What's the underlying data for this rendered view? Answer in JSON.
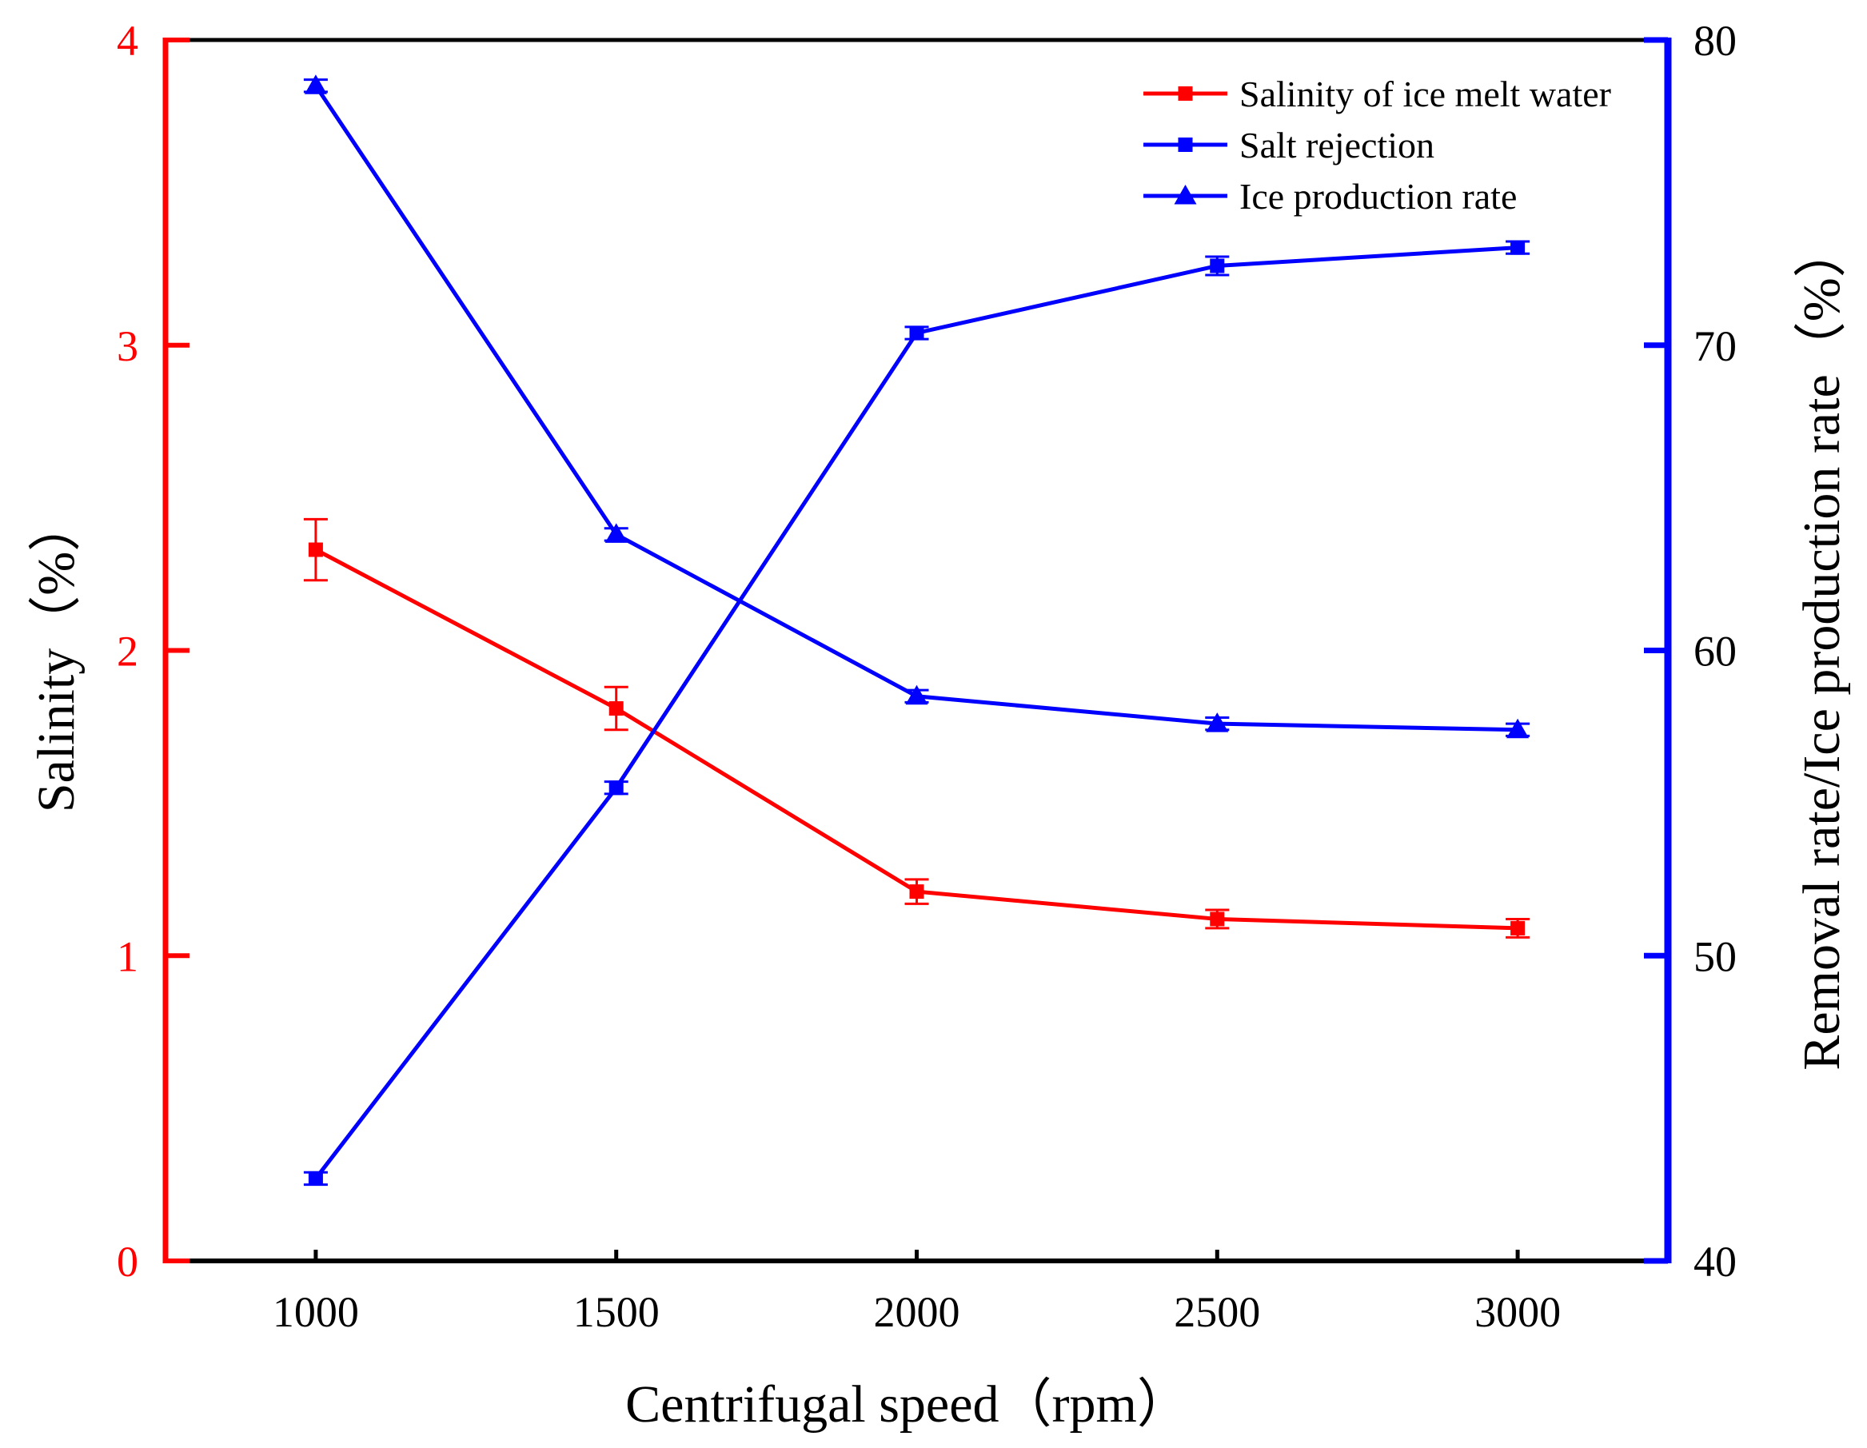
{
  "chart_data": {
    "type": "line",
    "x": [
      1000,
      1500,
      2000,
      2500,
      3000
    ],
    "xlabel": "Centrifugal speed（rpm）",
    "xlim": [
      750,
      3250
    ],
    "xticks": [
      "1000",
      "1500",
      "2000",
      "2500",
      "3000"
    ],
    "ylabel_left": "Salinity（%）",
    "ylim_left": [
      0,
      4
    ],
    "yticks_left": [
      "0",
      "1",
      "2",
      "3",
      "4"
    ],
    "ylabel_right": "Removal rate/Ice production rate（%）",
    "ylim_right": [
      40,
      80
    ],
    "yticks_right": [
      "40",
      "50",
      "60",
      "70",
      "80"
    ],
    "colors": {
      "left_axis": "#ff0000",
      "right_axis": "#0000ff",
      "frame": "#000000"
    },
    "legend_position": "top-right",
    "series": [
      {
        "name": "Salinity of ice melt water",
        "axis": "left",
        "color": "#ff0000",
        "marker": "square",
        "values": [
          2.33,
          1.81,
          1.21,
          1.12,
          1.09
        ],
        "errors": [
          0.1,
          0.07,
          0.04,
          0.03,
          0.03
        ]
      },
      {
        "name": "Salt rejection",
        "axis": "right",
        "color": "#0000ff",
        "marker": "square",
        "values": [
          42.7,
          55.5,
          70.4,
          72.6,
          73.2
        ],
        "errors": [
          0.2,
          0.2,
          0.2,
          0.3,
          0.2
        ]
      },
      {
        "name": "Ice production rate",
        "axis": "right",
        "color": "#0000ff",
        "marker": "triangle",
        "values": [
          78.5,
          63.8,
          58.5,
          57.6,
          57.4
        ],
        "errors": [
          0.2,
          0.2,
          0.2,
          0.2,
          0.2
        ]
      }
    ]
  }
}
